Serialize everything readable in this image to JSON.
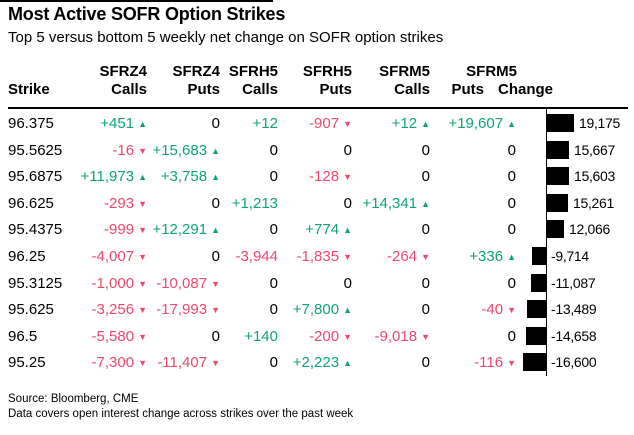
{
  "title": "Most Active SOFR Option Strikes",
  "subtitle": "Top 5 versus bottom 5 weekly net change on SOFR option strikes",
  "colors": {
    "green": "#0FA379",
    "red": "#F0486C",
    "black": "#000000",
    "bar": "#000000"
  },
  "icons": {
    "up_arrow": "▲",
    "down_arrow": "▼"
  },
  "table": {
    "strike_header": "Strike",
    "change_header": "Change",
    "column_groups": [
      {
        "contract": "SFRZ4",
        "type": "Calls"
      },
      {
        "contract": "SFRZ4",
        "type": "Puts"
      },
      {
        "contract": "SFRH5",
        "type": "Calls"
      },
      {
        "contract": "SFRH5",
        "type": "Puts"
      },
      {
        "contract": "SFRM5",
        "type": "Calls"
      },
      {
        "contract": "SFRM5",
        "type": "Puts"
      }
    ],
    "rows": [
      {
        "strike": "96.375",
        "cells": [
          {
            "text": "+451",
            "color": "green",
            "arrow": "up"
          },
          {
            "text": "0",
            "color": "black",
            "arrow": null
          },
          {
            "text": "+12",
            "color": "green",
            "arrow": null
          },
          {
            "text": "-907",
            "color": "red",
            "arrow": "down"
          },
          {
            "text": "+12",
            "color": "green",
            "arrow": "up"
          },
          {
            "text": "+19,607",
            "color": "green",
            "arrow": "up"
          }
        ],
        "change": 19175,
        "change_label": "19,175"
      },
      {
        "strike": "95.5625",
        "cells": [
          {
            "text": "-16",
            "color": "red",
            "arrow": "down"
          },
          {
            "text": "+15,683",
            "color": "green",
            "arrow": "up"
          },
          {
            "text": "0",
            "color": "black",
            "arrow": null
          },
          {
            "text": "0",
            "color": "black",
            "arrow": null
          },
          {
            "text": "0",
            "color": "black",
            "arrow": null
          },
          {
            "text": "0",
            "color": "black",
            "arrow": null
          }
        ],
        "change": 15667,
        "change_label": "15,667"
      },
      {
        "strike": "95.6875",
        "cells": [
          {
            "text": "+11,973",
            "color": "green",
            "arrow": "up"
          },
          {
            "text": "+3,758",
            "color": "green",
            "arrow": "up"
          },
          {
            "text": "0",
            "color": "black",
            "arrow": null
          },
          {
            "text": "-128",
            "color": "red",
            "arrow": "down"
          },
          {
            "text": "0",
            "color": "black",
            "arrow": null
          },
          {
            "text": "0",
            "color": "black",
            "arrow": null
          }
        ],
        "change": 15603,
        "change_label": "15,603"
      },
      {
        "strike": "96.625",
        "cells": [
          {
            "text": "-293",
            "color": "red",
            "arrow": "down"
          },
          {
            "text": "0",
            "color": "black",
            "arrow": null
          },
          {
            "text": "+1,213",
            "color": "green",
            "arrow": null
          },
          {
            "text": "0",
            "color": "black",
            "arrow": null
          },
          {
            "text": "+14,341",
            "color": "green",
            "arrow": "up"
          },
          {
            "text": "0",
            "color": "black",
            "arrow": null
          }
        ],
        "change": 15261,
        "change_label": "15,261"
      },
      {
        "strike": "95.4375",
        "cells": [
          {
            "text": "-999",
            "color": "red",
            "arrow": "down"
          },
          {
            "text": "+12,291",
            "color": "green",
            "arrow": "up"
          },
          {
            "text": "0",
            "color": "black",
            "arrow": null
          },
          {
            "text": "+774",
            "color": "green",
            "arrow": "up"
          },
          {
            "text": "0",
            "color": "black",
            "arrow": null
          },
          {
            "text": "0",
            "color": "black",
            "arrow": null
          }
        ],
        "change": 12066,
        "change_label": "12,066"
      },
      {
        "strike": "96.25",
        "cells": [
          {
            "text": "-4,007",
            "color": "red",
            "arrow": "down"
          },
          {
            "text": "0",
            "color": "black",
            "arrow": null
          },
          {
            "text": "-3,944",
            "color": "red",
            "arrow": null
          },
          {
            "text": "-1,835",
            "color": "red",
            "arrow": "down"
          },
          {
            "text": "-264",
            "color": "red",
            "arrow": "down"
          },
          {
            "text": "+336",
            "color": "green",
            "arrow": "up"
          }
        ],
        "change": -9714,
        "change_label": "-9,714"
      },
      {
        "strike": "95.3125",
        "cells": [
          {
            "text": "-1,000",
            "color": "red",
            "arrow": "down"
          },
          {
            "text": "-10,087",
            "color": "red",
            "arrow": "down"
          },
          {
            "text": "0",
            "color": "black",
            "arrow": null
          },
          {
            "text": "0",
            "color": "black",
            "arrow": null
          },
          {
            "text": "0",
            "color": "black",
            "arrow": null
          },
          {
            "text": "0",
            "color": "black",
            "arrow": null
          }
        ],
        "change": -11087,
        "change_label": "-11,087"
      },
      {
        "strike": "95.625",
        "cells": [
          {
            "text": "-3,256",
            "color": "red",
            "arrow": "down"
          },
          {
            "text": "-17,993",
            "color": "red",
            "arrow": "down"
          },
          {
            "text": "0",
            "color": "black",
            "arrow": null
          },
          {
            "text": "+7,800",
            "color": "green",
            "arrow": "up"
          },
          {
            "text": "0",
            "color": "black",
            "arrow": null
          },
          {
            "text": "-40",
            "color": "red",
            "arrow": "down"
          }
        ],
        "change": -13489,
        "change_label": "-13,489"
      },
      {
        "strike": "96.5",
        "cells": [
          {
            "text": "-5,580",
            "color": "red",
            "arrow": "down"
          },
          {
            "text": "0",
            "color": "black",
            "arrow": null
          },
          {
            "text": "+140",
            "color": "green",
            "arrow": null
          },
          {
            "text": "-200",
            "color": "red",
            "arrow": "down"
          },
          {
            "text": "-9,018",
            "color": "red",
            "arrow": "down"
          },
          {
            "text": "0",
            "color": "black",
            "arrow": null
          }
        ],
        "change": -14658,
        "change_label": "-14,658"
      },
      {
        "strike": "95.25",
        "cells": [
          {
            "text": "-7,300",
            "color": "red",
            "arrow": "down"
          },
          {
            "text": "-11,407",
            "color": "red",
            "arrow": "down"
          },
          {
            "text": "0",
            "color": "black",
            "arrow": null
          },
          {
            "text": "+2,223",
            "color": "green",
            "arrow": "up"
          },
          {
            "text": "0",
            "color": "black",
            "arrow": null
          },
          {
            "text": "-116",
            "color": "red",
            "arrow": "down"
          }
        ],
        "change": -16600,
        "change_label": "-16,600"
      }
    ]
  },
  "footer": {
    "source": "Source: Bloomberg, CME",
    "note": "Data covers open interest change across strikes over the past week"
  },
  "chart_data": {
    "type": "bar",
    "orientation": "horizontal",
    "title": "Most Active SOFR Option Strikes",
    "subtitle": "Top 5 versus bottom 5 weekly net change on SOFR option strikes",
    "categories": [
      "96.375",
      "95.5625",
      "95.6875",
      "96.625",
      "95.4375",
      "96.25",
      "95.3125",
      "95.625",
      "96.5",
      "95.25"
    ],
    "series": [
      {
        "name": "SFRZ4 Calls",
        "values": [
          451,
          -16,
          11973,
          -293,
          -999,
          -4007,
          -1000,
          -3256,
          -5580,
          -7300
        ]
      },
      {
        "name": "SFRZ4 Puts",
        "values": [
          0,
          15683,
          3758,
          0,
          12291,
          0,
          -10087,
          -17993,
          0,
          -11407
        ]
      },
      {
        "name": "SFRH5 Calls",
        "values": [
          12,
          0,
          0,
          1213,
          0,
          -3944,
          0,
          0,
          140,
          0
        ]
      },
      {
        "name": "SFRH5 Puts",
        "values": [
          -907,
          0,
          -128,
          0,
          774,
          -1835,
          0,
          7800,
          -200,
          2223
        ]
      },
      {
        "name": "SFRM5 Calls",
        "values": [
          12,
          0,
          0,
          14341,
          0,
          -264,
          0,
          0,
          -9018,
          0
        ]
      },
      {
        "name": "SFRM5 Puts",
        "values": [
          19607,
          0,
          0,
          0,
          0,
          336,
          0,
          -40,
          0,
          -116
        ]
      },
      {
        "name": "Change",
        "values": [
          19175,
          15667,
          15603,
          15261,
          12066,
          -9714,
          -11087,
          -13489,
          -14658,
          -16600
        ]
      }
    ],
    "xlim": [
      -19175,
      19175
    ],
    "bar_color": "#000000",
    "value_labels": true,
    "grid": false,
    "legend_position": "none"
  }
}
